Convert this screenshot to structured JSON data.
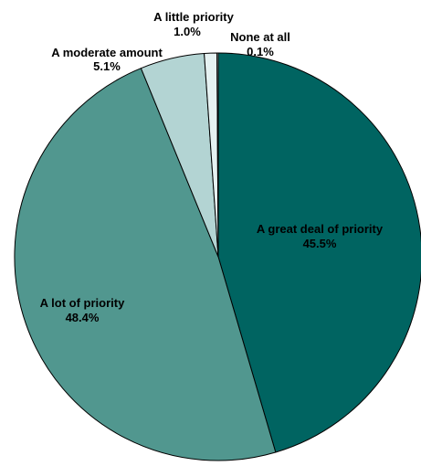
{
  "chart_data": {
    "type": "pie",
    "title": "",
    "slices": [
      {
        "label": "A great deal of priority",
        "value_label": "45.5%",
        "value": 45.5,
        "color": "#006461"
      },
      {
        "label": "A lot of priority",
        "value_label": "48.4%",
        "value": 48.4,
        "color": "#51978f"
      },
      {
        "label": "A moderate amount",
        "value_label": "5.1%",
        "value": 5.1,
        "color": "#b3d4d3"
      },
      {
        "label": "A little priority",
        "value_label": "1.0%",
        "value": 1.0,
        "color": "#e6f2f2"
      },
      {
        "label": "None at all",
        "value_label": "0.1%",
        "value": 0.1,
        "color": "#ffffff"
      }
    ],
    "start": "12 o'clock",
    "direction": "clockwise",
    "stroke_color": "#000000"
  }
}
